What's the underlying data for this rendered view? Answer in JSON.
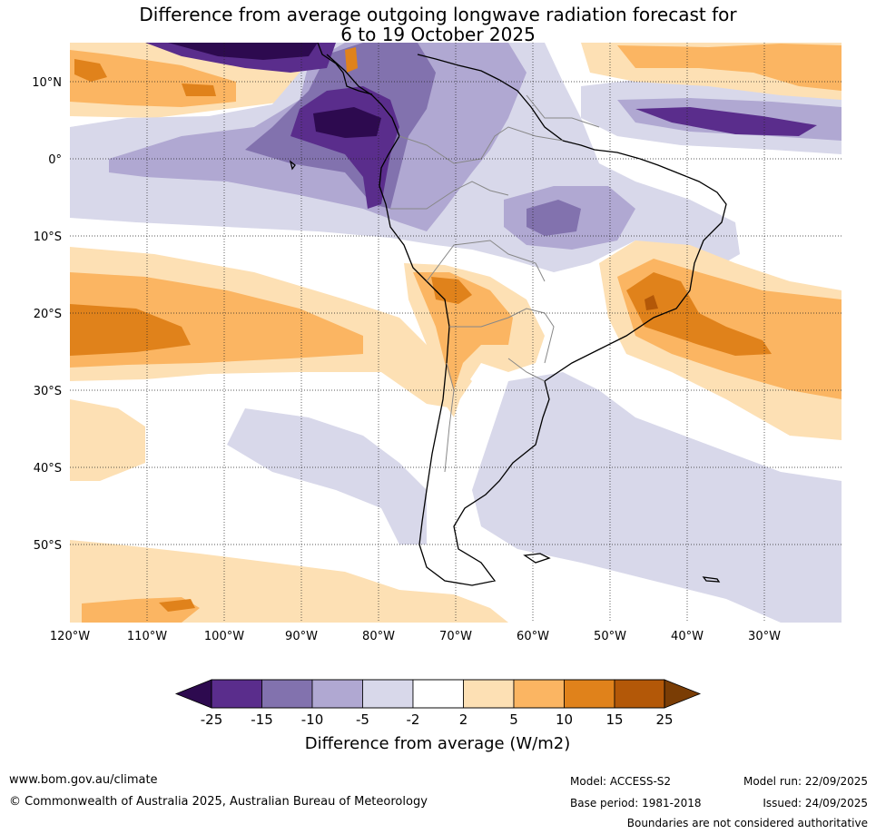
{
  "title": {
    "line1": "Difference from average outgoing longwave radiation forecast for",
    "line2": "6 to 19 October 2025"
  },
  "map": {
    "lat_labels": [
      "10°N",
      "0°",
      "10°S",
      "20°S",
      "30°S",
      "40°S",
      "50°S"
    ],
    "lon_labels": [
      "120°W",
      "110°W",
      "100°W",
      "90°W",
      "80°W",
      "70°W",
      "60°W",
      "50°W",
      "40°W",
      "30°W"
    ]
  },
  "colorbar": {
    "tick_labels": [
      "-25",
      "-15",
      "-10",
      "-5",
      "-2",
      "2",
      "5",
      "10",
      "15",
      "25"
    ],
    "colors": [
      "#2d0a4f",
      "#5a2d8c",
      "#8272ae",
      "#b0a8d2",
      "#d8d8ea",
      "#ffffff",
      "#fde0b4",
      "#fbb562",
      "#e0821b",
      "#b35808",
      "#7a3d05"
    ],
    "label": "Difference from average (W/m2)"
  },
  "footer": {
    "website": "www.bom.gov.au/climate",
    "copyright": "© Commonwealth of Australia 2025, Australian Bureau of Meteorology",
    "model": "Model: ACCESS-S2",
    "base_period": "Base period: 1981-2018",
    "model_run": "Model run: 22/09/2025",
    "issued": "Issued: 24/09/2025",
    "disclaimer": "Boundaries are not considered authoritative"
  }
}
